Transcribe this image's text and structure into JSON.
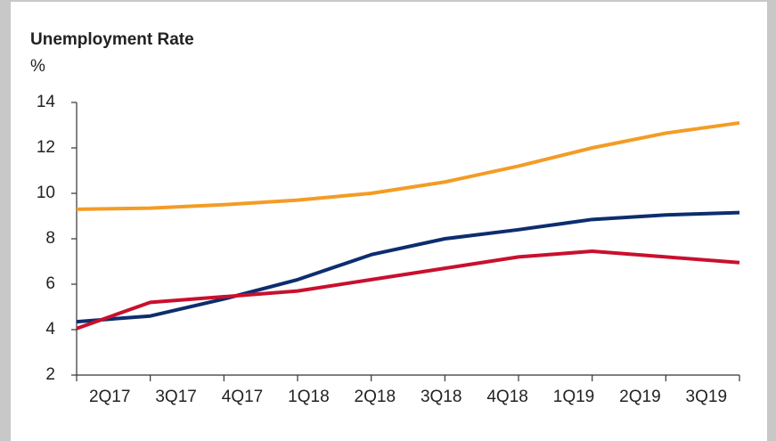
{
  "chart_data": {
    "type": "line",
    "title": "Unemployment Rate",
    "subtitle": "%",
    "categories": [
      "2Q17",
      "3Q17",
      "4Q17",
      "1Q18",
      "2Q18",
      "3Q18",
      "4Q18",
      "1Q19",
      "2Q19",
      "3Q19"
    ],
    "series": [
      {
        "color": "#f39c25",
        "values": [
          9.3,
          9.35,
          9.5,
          9.7,
          10.0,
          10.5,
          11.2,
          12.0,
          12.65,
          13.1
        ]
      },
      {
        "color": "#0d2d6e",
        "values": [
          4.35,
          4.6,
          5.35,
          6.2,
          7.3,
          8.0,
          8.4,
          8.85,
          9.05,
          9.15
        ]
      },
      {
        "color": "#c8102e",
        "values": [
          4.05,
          5.2,
          5.45,
          5.7,
          6.2,
          6.7,
          7.2,
          7.45,
          7.2,
          6.95
        ]
      }
    ],
    "ylim": [
      2,
      14
    ],
    "yticks": [
      2,
      4,
      6,
      8,
      10,
      12,
      14
    ],
    "grid": false
  }
}
